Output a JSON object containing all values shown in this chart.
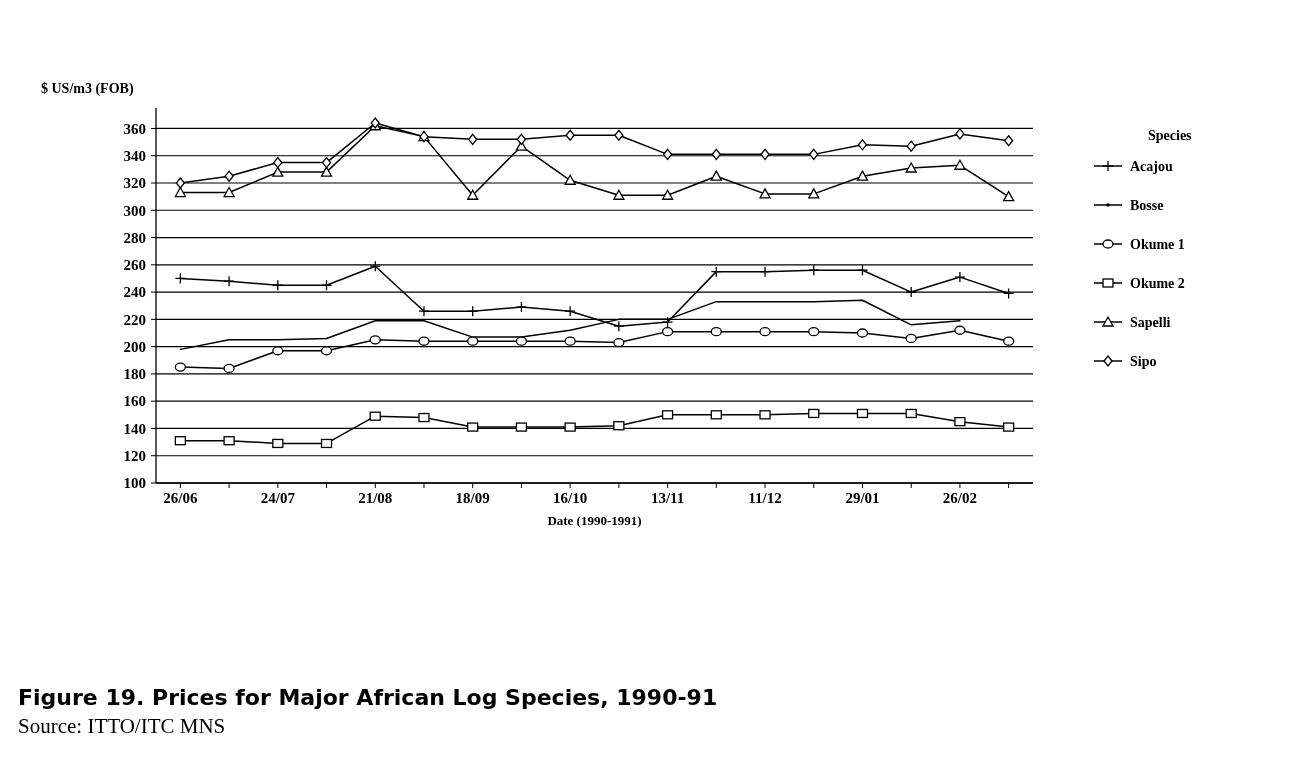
{
  "chart_data": {
    "type": "line",
    "title": "Figure 19. Prices for Major African Log Species, 1990-91",
    "annotations": [
      "Source: ITTO/ITC MNS"
    ],
    "xlabel": "Date (1990-1991)",
    "ylabel": "$ US/m3 (FOB)",
    "legend_title": "Species",
    "legend": "right",
    "grid": "y",
    "categories": [
      "26/06",
      null,
      "24/07",
      null,
      "21/08",
      null,
      "18/09",
      null,
      "16/10",
      null,
      "13/11",
      null,
      "11/12",
      null,
      "29/01",
      null,
      "26/02",
      null
    ],
    "ylim": [
      100,
      375
    ],
    "yticks": [
      100,
      120,
      140,
      160,
      180,
      200,
      220,
      240,
      260,
      280,
      300,
      320,
      340,
      360
    ],
    "series": [
      {
        "name": "Acajou",
        "color": "#000000",
        "marker": "cross",
        "values": [
          250,
          248,
          245,
          245,
          259,
          226,
          226,
          229,
          226,
          215,
          218,
          255,
          255,
          256,
          256,
          240,
          251,
          239
        ]
      },
      {
        "name": "Bosse",
        "color": "#000000",
        "marker": "none",
        "values": [
          198,
          205,
          205,
          206,
          219,
          219,
          207,
          207,
          212,
          220,
          220,
          233,
          233,
          233,
          234,
          216,
          219,
          null
        ]
      },
      {
        "name": "Okume 1",
        "color": "#000000",
        "marker": "circle",
        "values": [
          185,
          184,
          197,
          197,
          205,
          204,
          204,
          204,
          204,
          203,
          211,
          211,
          211,
          211,
          210,
          206,
          212,
          204
        ]
      },
      {
        "name": "Okume 2",
        "color": "#000000",
        "marker": "square",
        "values": [
          131,
          131,
          129,
          129,
          149,
          148,
          141,
          141,
          141,
          142,
          150,
          150,
          150,
          151,
          151,
          151,
          145,
          141
        ]
      },
      {
        "name": "Sapelli",
        "color": "#000000",
        "marker": "triangle",
        "values": [
          313,
          313,
          328,
          328,
          362,
          354,
          311,
          347,
          322,
          311,
          311,
          325,
          312,
          312,
          325,
          331,
          333,
          310
        ]
      },
      {
        "name": "Sipo",
        "color": "#000000",
        "marker": "diamond",
        "values": [
          320,
          325,
          335,
          335,
          364,
          354,
          352,
          352,
          355,
          355,
          341,
          341,
          341,
          341,
          348,
          347,
          356,
          351
        ]
      }
    ]
  }
}
